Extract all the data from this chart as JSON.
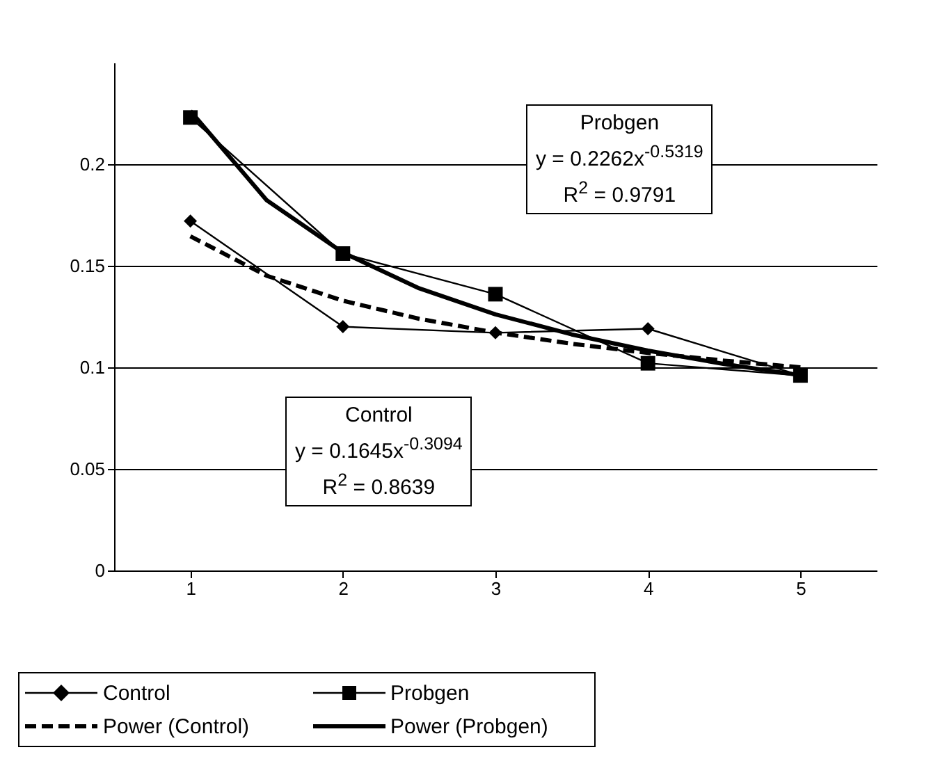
{
  "chart_data": {
    "type": "line",
    "x": [
      1,
      2,
      3,
      4,
      5
    ],
    "series": [
      {
        "name": "Control",
        "color": "#000000",
        "marker": "diamond",
        "line_style": "solid",
        "values": [
          0.172,
          0.12,
          0.117,
          0.119,
          0.096
        ]
      },
      {
        "name": "Probgen",
        "color": "#000000",
        "marker": "square",
        "line_style": "solid",
        "values": [
          0.223,
          0.156,
          0.136,
          0.102,
          0.096
        ]
      },
      {
        "name": "Power (Control)",
        "color": "#000000",
        "marker": "none",
        "line_style": "dashed",
        "x": [
          1,
          1.5,
          2,
          2.5,
          3,
          3.5,
          4,
          4.5,
          5
        ],
        "values": [
          0.1645,
          0.1451,
          0.1328,
          0.1239,
          0.1171,
          0.1116,
          0.1071,
          0.1033,
          0.1
        ]
      },
      {
        "name": "Power (Probgen)",
        "color": "#000000",
        "marker": "none",
        "line_style": "solid",
        "x": [
          1,
          1.5,
          2,
          2.5,
          3,
          3.5,
          4,
          4.5,
          5
        ],
        "values": [
          0.2262,
          0.1823,
          0.1565,
          0.1389,
          0.1261,
          0.1162,
          0.1082,
          0.1016,
          0.0961
        ]
      }
    ],
    "xlim": [
      0.5,
      5.5
    ],
    "xticks": [
      1,
      2,
      3,
      4,
      5
    ],
    "ylim": [
      0,
      0.25
    ],
    "yticks": [
      0,
      0.05,
      0.1,
      0.15,
      0.2
    ],
    "grid": "y",
    "legend": "bottom",
    "annotations": [
      "Probgen\ny = 0.2262x$^{-0.5319}$\nR$^{2}$ = 0.9791",
      "Control\ny = 0.1645x$^{-0.3094}$\nR$^{2}$ = 0.8639"
    ]
  }
}
